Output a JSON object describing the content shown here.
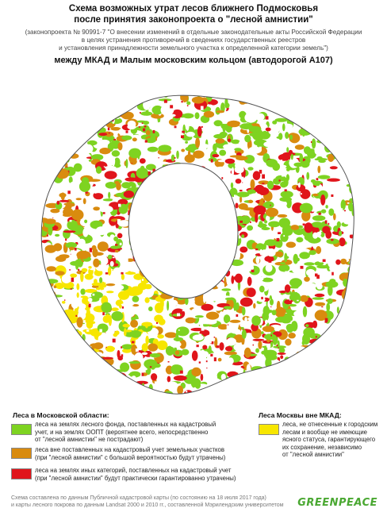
{
  "header": {
    "title_line1": "Схема возможных утрат лесов ближнего Подмосковья",
    "title_line2": "после принятия законопроекта о \"лесной амнистии\"",
    "subtitle_line1": "(законопроекта № 90991-7 \"О внесении изменений в отдельные законодательные акты Российской Федерации",
    "subtitle_line2": "в целях устранения противоречий в сведениях государственных реестров",
    "subtitle_line3": "и установления принадлежности земельного участка к определенной категории земель\")",
    "title_line3": "между МКАД и Малым московским кольцом (автодорогой А107)"
  },
  "colors": {
    "green": "#7ed321",
    "orange": "#d98b0f",
    "red": "#e0151b",
    "yellow": "#f7e600",
    "white": "#ffffff",
    "logo": "#4aa832"
  },
  "legend": {
    "oblast_heading": "Леса в Московской области:",
    "green_line1": "леса на землях лесного фонда, поставленных на кадастровый",
    "green_line2": "учет, и на землях ООПТ (вероятнее всего, непосредственно",
    "green_line3": "от \"лесной амнистии\" не пострадают)",
    "orange_line1": "леса вне поставленных на кадастровый учет земельных участков",
    "orange_line2": "(при \"лесной амнистии\" с большой вероятностью будут утрачены)",
    "red_line1": "леса на землях иных категорий, поставленных на кадастровый учет",
    "red_line2": "(при \"лесной амнистии\" будут практически гарантированно утрачены)",
    "moscow_heading": "Леса Москвы вне МКАД:",
    "yellow_line1": "леса, не отнесенные к городским",
    "yellow_line2": "лесам и вообще не имеющие",
    "yellow_line3": "ясного статуса, гарантирующего",
    "yellow_line4": "их сохранение, независимо",
    "yellow_line5": "от \"лесной амнистии\""
  },
  "footer": {
    "line1": "Схема составлена по данным Публичной кадастровой карты (по состоянию на 18 июля 2017 года)",
    "line2": "и карты лесного покрова по данным Landsat 2000 и 2010 гг., составленной Мэрилендским университетом",
    "logo": "GREENPEACE"
  }
}
